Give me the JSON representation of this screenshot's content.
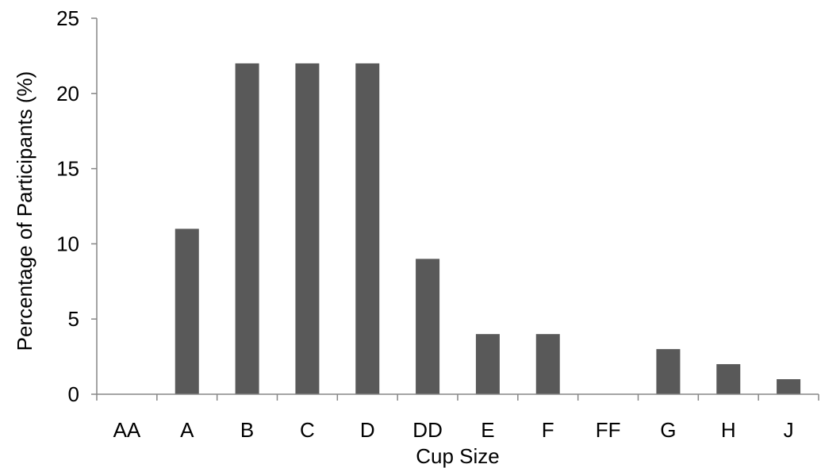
{
  "chart_data": {
    "type": "bar",
    "title": "",
    "xlabel": "Cup Size",
    "ylabel": "Percentage of Participants (%)",
    "categories": [
      "AA",
      "A",
      "B",
      "C",
      "D",
      "DD",
      "E",
      "F",
      "FF",
      "G",
      "H",
      "J"
    ],
    "values": [
      0,
      11,
      22,
      22,
      22,
      9,
      4,
      4,
      0,
      3,
      2,
      1
    ],
    "ylim": [
      0,
      25
    ],
    "yticks": [
      "0",
      "5",
      "10",
      "15",
      "20",
      "25"
    ],
    "grid": false,
    "legend": "none",
    "colors": {
      "bar": "#595959",
      "axis": "#868686",
      "text": "#000000"
    }
  }
}
